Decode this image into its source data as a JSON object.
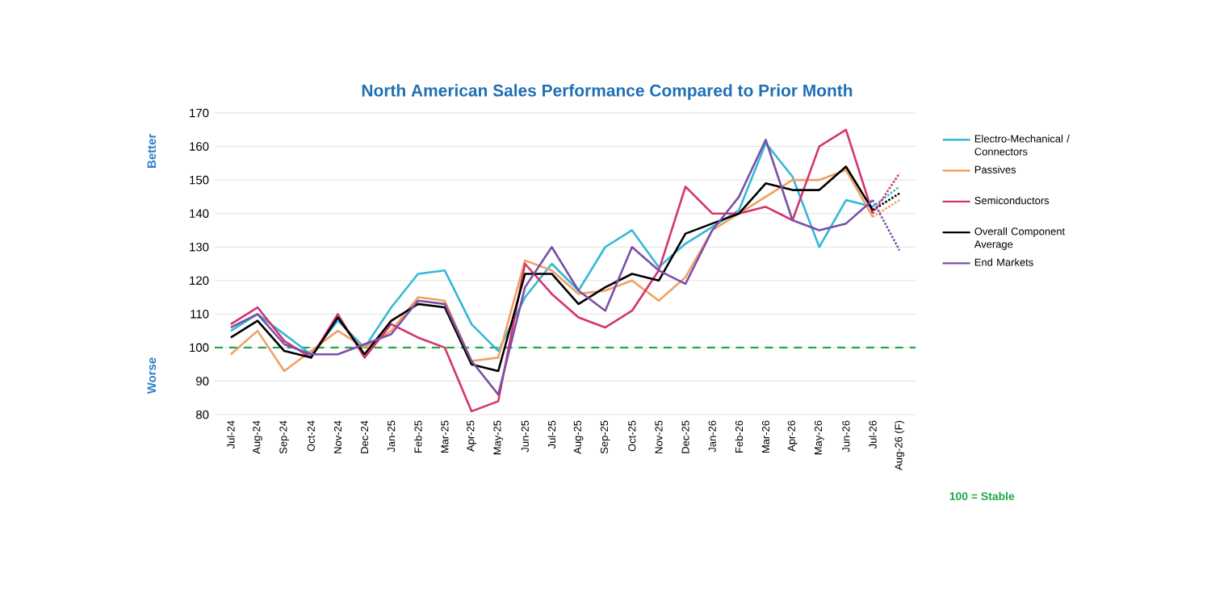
{
  "chart_data": {
    "type": "line",
    "title": "North American Sales Performance Compared to Prior Month",
    "annotations": [
      "Better",
      "Worse"
    ],
    "categories": [
      "Jul-24",
      "Aug-24",
      "Sep-24",
      "Oct-24",
      "Nov-24",
      "Dec-24",
      "Jan-25",
      "Feb-25",
      "Mar-25",
      "Apr-25",
      "May-25",
      "Jun-25",
      "Jul-25",
      "Aug-25",
      "Sep-25",
      "Oct-25",
      "Nov-25",
      "Dec-25",
      "Jan-26",
      "Feb-26",
      "Mar-26",
      "Apr-26",
      "May-26",
      "Jun-26",
      "Jul-26",
      "Aug-26 (F)"
    ],
    "series": [
      {
        "name": "Electro-Mechanical / Connectors",
        "color": "#33b8d8",
        "values": [
          105,
          110,
          104,
          98,
          108,
          100,
          112,
          122,
          123,
          107,
          99,
          115,
          125,
          117,
          130,
          135,
          124,
          131,
          136,
          141,
          161,
          151,
          130,
          144,
          142,
          null
        ]
      },
      {
        "name": "Passives",
        "color": "#f0a060",
        "values": [
          98,
          105,
          93,
          99,
          105,
          100,
          105,
          115,
          114,
          96,
          97,
          126,
          123,
          116,
          117,
          120,
          114,
          121,
          135,
          140,
          145,
          150,
          150,
          153,
          139,
          null
        ]
      },
      {
        "name": "Semiconductors",
        "color": "#d6336c",
        "values": [
          107,
          112,
          102,
          97,
          110,
          97,
          107,
          103,
          100,
          81,
          84,
          125,
          116,
          109,
          106,
          111,
          123,
          148,
          140,
          140,
          142,
          138,
          160,
          165,
          140,
          null
        ]
      },
      {
        "name": "Overall Component Average",
        "color": "#000000",
        "values": [
          103,
          108,
          99,
          97,
          109,
          98,
          108,
          113,
          112,
          95,
          93,
          122,
          122,
          113,
          118,
          122,
          120,
          134,
          137,
          140,
          149,
          147,
          147,
          154,
          141,
          null
        ]
      },
      {
        "name": "End Markets",
        "color": "#7a4fa8",
        "values": [
          106,
          110,
          101,
          98,
          98,
          101,
          104,
          114,
          113,
          96,
          86,
          118,
          130,
          117,
          111,
          130,
          123,
          119,
          135,
          145,
          162,
          138,
          135,
          137,
          144,
          null
        ]
      },
      {
        "color": "#33b8d8",
        "line_style": "dotted",
        "values": [
          null,
          null,
          null,
          null,
          null,
          null,
          null,
          null,
          null,
          null,
          null,
          null,
          null,
          null,
          null,
          null,
          null,
          null,
          null,
          null,
          null,
          null,
          null,
          null,
          142,
          148
        ]
      },
      {
        "color": "#f0a060",
        "line_style": "dotted",
        "values": [
          null,
          null,
          null,
          null,
          null,
          null,
          null,
          null,
          null,
          null,
          null,
          null,
          null,
          null,
          null,
          null,
          null,
          null,
          null,
          null,
          null,
          null,
          null,
          null,
          139,
          144
        ]
      },
      {
        "color": "#d6336c",
        "line_style": "dotted",
        "values": [
          null,
          null,
          null,
          null,
          null,
          null,
          null,
          null,
          null,
          null,
          null,
          null,
          null,
          null,
          null,
          null,
          null,
          null,
          null,
          null,
          null,
          null,
          null,
          null,
          140,
          152
        ]
      },
      {
        "color": "#000000",
        "line_style": "dotted",
        "values": [
          null,
          null,
          null,
          null,
          null,
          null,
          null,
          null,
          null,
          null,
          null,
          null,
          null,
          null,
          null,
          null,
          null,
          null,
          null,
          null,
          null,
          null,
          null,
          null,
          141,
          146
        ]
      },
      {
        "color": "#7a4fa8",
        "line_style": "dotted",
        "values": [
          null,
          null,
          null,
          null,
          null,
          null,
          null,
          null,
          null,
          null,
          null,
          null,
          null,
          null,
          null,
          null,
          null,
          null,
          null,
          null,
          null,
          null,
          null,
          null,
          144,
          129
        ]
      }
    ],
    "ylim": [
      80,
      170
    ],
    "yticks": [
      80,
      90,
      100,
      110,
      120,
      130,
      140,
      150,
      160,
      170
    ],
    "grid": "y",
    "legend": "right",
    "line_style": "solid",
    "marker": "none",
    "ref_lines": [
      {
        "axis": "y",
        "value": 100,
        "label": "100 = Stable",
        "color": "#22a84a",
        "line_style": "dashed"
      }
    ]
  }
}
